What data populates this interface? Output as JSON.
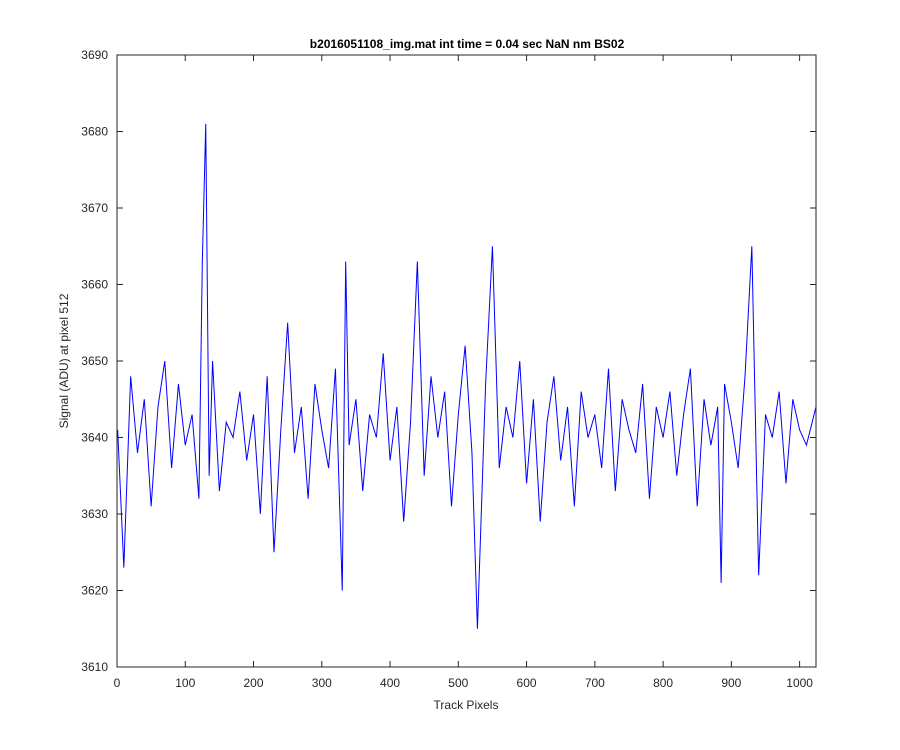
{
  "chart_data": {
    "type": "line",
    "title": "b2016051108_img.mat int time = 0.04 sec  NaN nm BS02",
    "xlabel": "Track Pixels",
    "ylabel": "Signal (ADU) at pixel 512",
    "xlim": [
      0,
      1024
    ],
    "ylim": [
      3610,
      3690
    ],
    "xticks": [
      0,
      100,
      200,
      300,
      400,
      500,
      600,
      700,
      800,
      900,
      1000
    ],
    "yticks": [
      3610,
      3620,
      3630,
      3640,
      3650,
      3660,
      3670,
      3680,
      3690
    ],
    "grid": false,
    "legend": "none",
    "series": [
      {
        "color": "#0000ff",
        "x": [
          1,
          10,
          20,
          30,
          40,
          50,
          60,
          70,
          80,
          90,
          100,
          110,
          120,
          125,
          130,
          135,
          140,
          150,
          160,
          170,
          180,
          190,
          200,
          210,
          220,
          230,
          240,
          250,
          260,
          270,
          280,
          290,
          300,
          310,
          320,
          330,
          335,
          340,
          350,
          360,
          370,
          380,
          390,
          400,
          410,
          420,
          430,
          440,
          450,
          460,
          470,
          480,
          490,
          500,
          510,
          520,
          528,
          540,
          550,
          560,
          570,
          580,
          590,
          600,
          610,
          620,
          630,
          640,
          650,
          660,
          670,
          680,
          690,
          700,
          710,
          720,
          730,
          740,
          750,
          760,
          770,
          780,
          790,
          800,
          810,
          820,
          830,
          840,
          850,
          860,
          870,
          880,
          885,
          890,
          900,
          910,
          920,
          930,
          940,
          950,
          960,
          970,
          980,
          990,
          1000,
          1010,
          1024
        ],
        "y": [
          3641,
          3623,
          3648,
          3638,
          3645,
          3631,
          3644,
          3650,
          3636,
          3647,
          3639,
          3643,
          3632,
          3663,
          3681,
          3635,
          3650,
          3633,
          3642,
          3640,
          3646,
          3637,
          3643,
          3630,
          3648,
          3625,
          3641,
          3655,
          3638,
          3644,
          3632,
          3647,
          3641,
          3636,
          3649,
          3620,
          3663,
          3639,
          3645,
          3633,
          3643,
          3640,
          3651,
          3637,
          3644,
          3629,
          3642,
          3663,
          3635,
          3648,
          3640,
          3646,
          3631,
          3643,
          3652,
          3638,
          3615,
          3647,
          3665,
          3636,
          3644,
          3640,
          3650,
          3634,
          3645,
          3629,
          3642,
          3648,
          3637,
          3644,
          3631,
          3646,
          3640,
          3643,
          3636,
          3649,
          3633,
          3645,
          3641,
          3638,
          3647,
          3632,
          3644,
          3640,
          3646,
          3635,
          3643,
          3649,
          3631,
          3645,
          3639,
          3644,
          3621,
          3647,
          3642,
          3636,
          3648,
          3665,
          3622,
          3643,
          3640,
          3646,
          3634,
          3645,
          3641,
          3639,
          3644
        ]
      }
    ]
  }
}
